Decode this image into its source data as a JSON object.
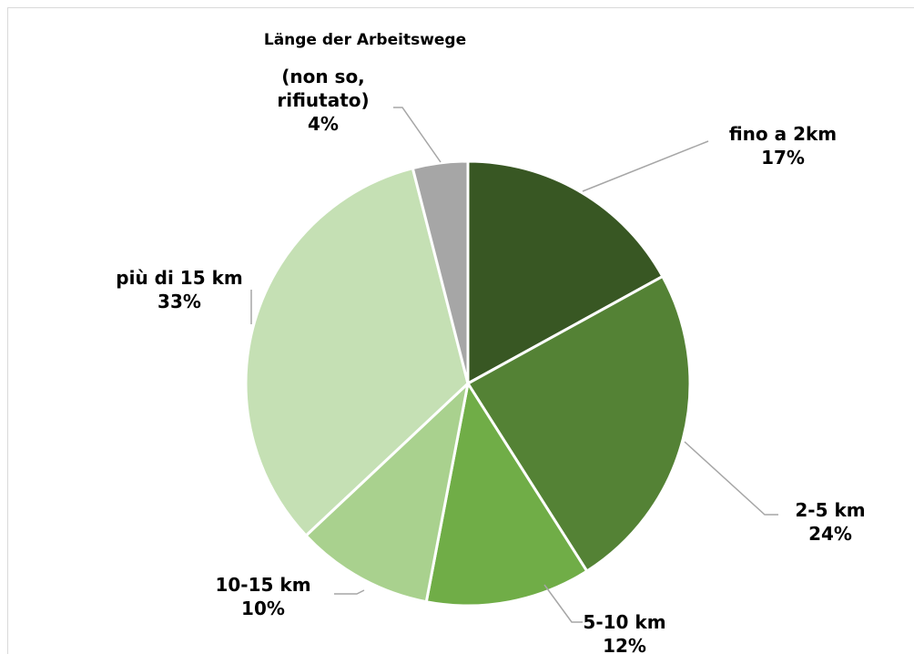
{
  "chart_data": {
    "type": "pie",
    "title": "Länge der Arbeitswege",
    "categories": [
      "fino a 2km",
      "2-5 km",
      "5-10 km",
      "10-15 km",
      "più di 15 km",
      "(non so, rifiutato)"
    ],
    "values": [
      17,
      24,
      12,
      10,
      33,
      4
    ],
    "value_labels": [
      "17%",
      "24%",
      "12%",
      "10%",
      "33%",
      "4%"
    ],
    "colors": [
      "#385723",
      "#548235",
      "#70ad47",
      "#a9d18e",
      "#c5e0b4",
      "#a6a6a6"
    ]
  }
}
